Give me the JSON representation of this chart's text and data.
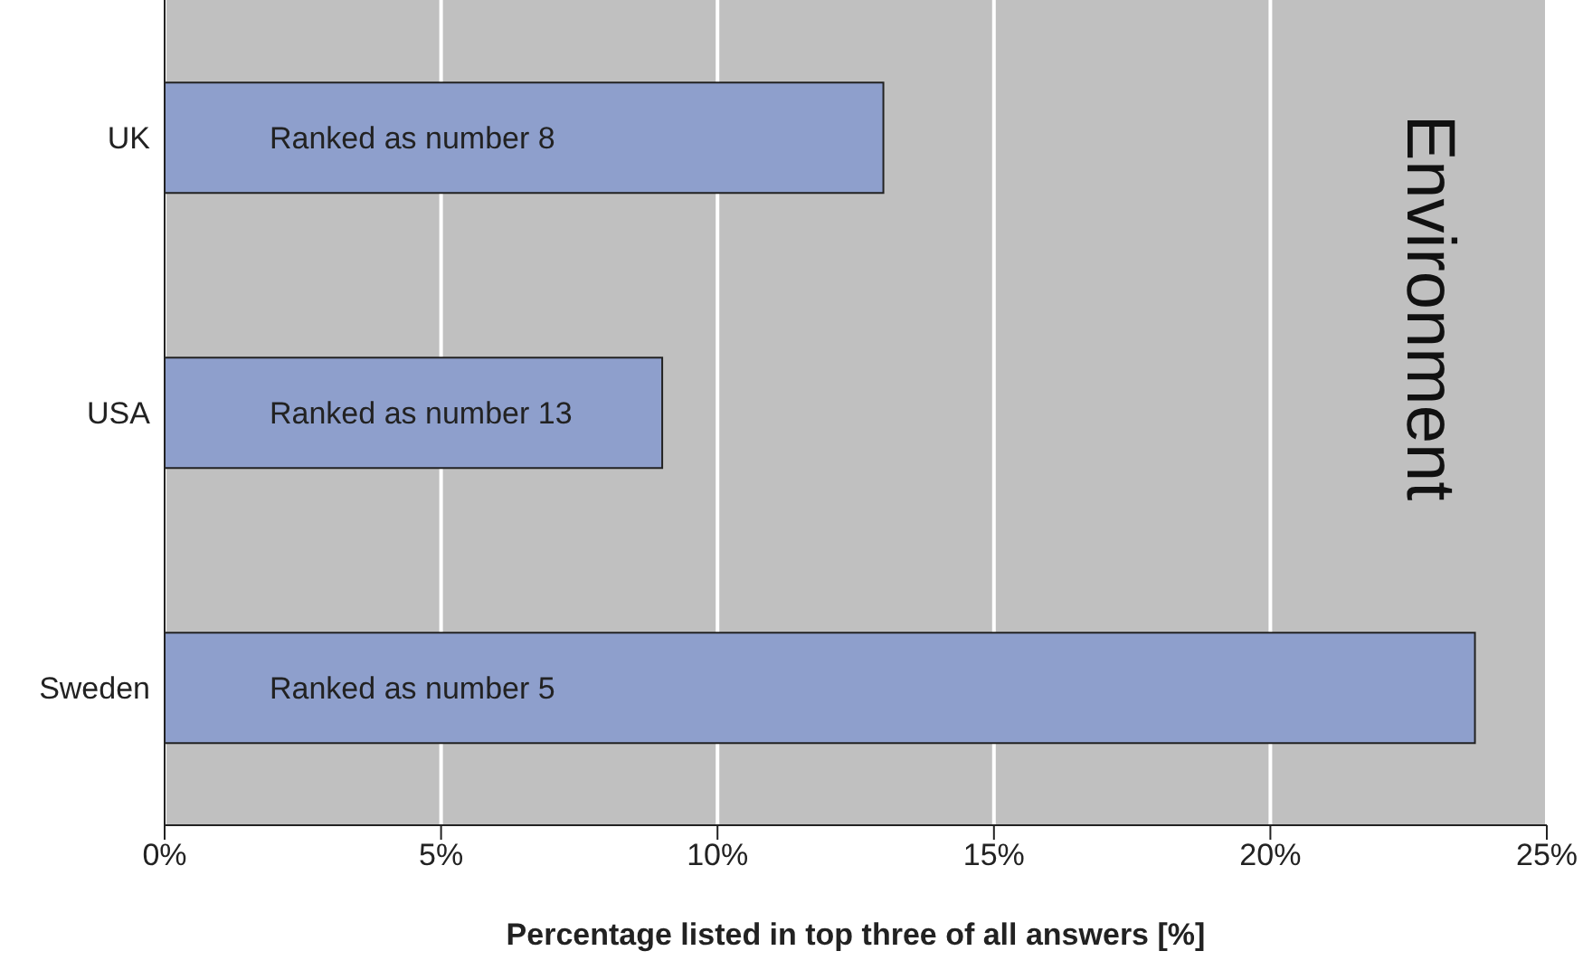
{
  "chart_data": {
    "type": "bar",
    "orientation": "horizontal",
    "categories": [
      "UK",
      "USA",
      "Sweden"
    ],
    "values": [
      13,
      9,
      23.7
    ],
    "color": "#8e9fcc",
    "xlim": [
      0,
      25
    ],
    "xticks": [
      {
        "value": 0,
        "label": "0%"
      },
      {
        "value": 5,
        "label": "5%"
      },
      {
        "value": 10,
        "label": "10%"
      },
      {
        "value": 15,
        "label": "15%"
      },
      {
        "value": 20,
        "label": "20%"
      },
      {
        "value": 25,
        "label": "25%"
      }
    ],
    "xlabel": "Percentage listed in top three of all answers [%]",
    "grid": "x",
    "annotations": [
      "Ranked as number 8",
      "Ranked as number 13",
      "Ranked as number 5",
      "Environment"
    ]
  }
}
